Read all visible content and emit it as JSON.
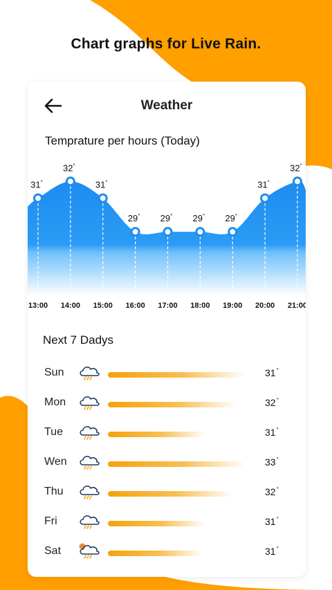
{
  "headline": "Chart graphs for Live Rain.",
  "header": {
    "title": "Weather",
    "back_icon": "arrow-left-icon"
  },
  "hourly": {
    "title": "Temprature per hours (Today)",
    "degree_symbol": "°"
  },
  "chart_data": {
    "type": "area",
    "x": [
      "13:00",
      "14:00",
      "15:00",
      "16:00",
      "17:00",
      "18:00",
      "19:00",
      "20:00",
      "21:00"
    ],
    "series": [
      {
        "values": [
          31,
          32,
          31,
          29,
          29,
          29,
          29,
          31,
          32
        ]
      }
    ],
    "point_labels": [
      "31",
      "32",
      "31",
      "29",
      "29",
      "29",
      "29",
      "31",
      "32"
    ],
    "ylim": [
      26,
      33
    ],
    "grid": false,
    "colors": {
      "fill_top": "#1e8cf0",
      "fill_bottom": "#ffffff",
      "marker": "#1e8cf0"
    }
  },
  "weekly": {
    "title": "Next 7 Dadys",
    "days": [
      {
        "name": "Sun",
        "temp": "31",
        "level": 0.9,
        "icon": "rain-cloud-icon"
      },
      {
        "name": "Mon",
        "temp": "32",
        "level": 0.84,
        "icon": "rain-cloud-icon"
      },
      {
        "name": "Tue",
        "temp": "31",
        "level": 0.64,
        "icon": "rain-cloud-icon"
      },
      {
        "name": "Wen",
        "temp": "33",
        "level": 0.9,
        "icon": "rain-cloud-icon"
      },
      {
        "name": "Thu",
        "temp": "32",
        "level": 0.82,
        "icon": "rain-cloud-icon"
      },
      {
        "name": "Fri",
        "temp": "31",
        "level": 0.64,
        "icon": "rain-cloud-icon"
      },
      {
        "name": "Sat",
        "temp": "31",
        "level": 0.62,
        "icon": "sun-rain-cloud-icon"
      }
    ]
  },
  "colors": {
    "accent": "#ff9f00",
    "bar": "#f5a20a",
    "blue": "#1e8cf0"
  }
}
